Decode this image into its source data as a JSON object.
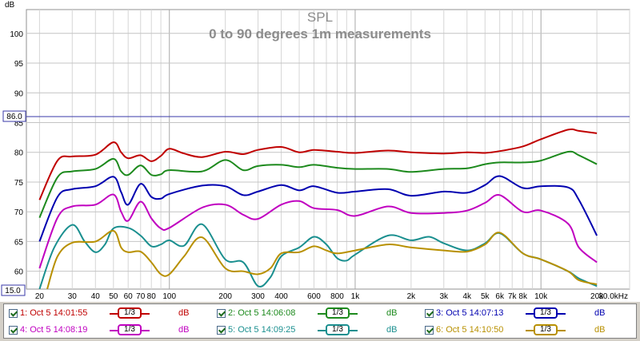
{
  "chart_data": {
    "type": "line",
    "title": "SPL",
    "subtitle": "0 to 90 degrees 1m measurements",
    "ylabel": "dB",
    "xlabel": "",
    "x_scale": "log",
    "xlim": [
      17,
      30000
    ],
    "ylim": [
      57,
      104
    ],
    "y_ticks": [
      "100",
      "95",
      "90",
      "85",
      "80",
      "75",
      "70",
      "65",
      "60"
    ],
    "x_ticks": [
      "20",
      "30",
      "40",
      "50",
      "60",
      "70",
      "80",
      "100",
      "200",
      "300",
      "400",
      "600",
      "800",
      "1k",
      "2k",
      "3k",
      "4k",
      "5k",
      "6k",
      "7k",
      "8k",
      "10k",
      "20k",
      "30.0kHz"
    ],
    "x_tick_values": [
      20,
      30,
      40,
      50,
      60,
      70,
      80,
      100,
      200,
      300,
      400,
      600,
      800,
      1000,
      2000,
      3000,
      4000,
      5000,
      6000,
      7000,
      8000,
      10000,
      20000,
      30000
    ],
    "reference_line_value": "86.0",
    "y_min_marker": "15.0",
    "grid": true,
    "series": [
      {
        "name": "1: Oct 5 14:01:55",
        "color": "#c00000",
        "points": [
          [
            20,
            72
          ],
          [
            25,
            78.6
          ],
          [
            30,
            79.3
          ],
          [
            40,
            79.6
          ],
          [
            50,
            81.7
          ],
          [
            55,
            80
          ],
          [
            60,
            79
          ],
          [
            70,
            79.5
          ],
          [
            80,
            78.5
          ],
          [
            90,
            79.4
          ],
          [
            100,
            80.6
          ],
          [
            120,
            79.8
          ],
          [
            150,
            79.2
          ],
          [
            200,
            80.1
          ],
          [
            250,
            79.7
          ],
          [
            300,
            80.4
          ],
          [
            400,
            80.9
          ],
          [
            500,
            80
          ],
          [
            600,
            80.4
          ],
          [
            800,
            80.1
          ],
          [
            1000,
            79.9
          ],
          [
            1500,
            80.3
          ],
          [
            2000,
            80
          ],
          [
            3000,
            79.8
          ],
          [
            4000,
            80
          ],
          [
            5000,
            79.9
          ],
          [
            6000,
            80.2
          ],
          [
            8000,
            81
          ],
          [
            10000,
            82.2
          ],
          [
            14000,
            83.8
          ],
          [
            16000,
            83.6
          ],
          [
            20000,
            83.2
          ]
        ]
      },
      {
        "name": "2: Oct 5 14:06:08",
        "color": "#1d8a1d",
        "points": [
          [
            20,
            69
          ],
          [
            25,
            75.8
          ],
          [
            30,
            76.8
          ],
          [
            40,
            77.2
          ],
          [
            50,
            78.9
          ],
          [
            55,
            76.8
          ],
          [
            60,
            76.2
          ],
          [
            70,
            77.8
          ],
          [
            80,
            76.2
          ],
          [
            90,
            76.3
          ],
          [
            100,
            77
          ],
          [
            150,
            76.8
          ],
          [
            200,
            78.7
          ],
          [
            250,
            77
          ],
          [
            300,
            77.7
          ],
          [
            400,
            77.9
          ],
          [
            500,
            77.5
          ],
          [
            600,
            77.9
          ],
          [
            800,
            77.4
          ],
          [
            1000,
            77.2
          ],
          [
            1500,
            77.2
          ],
          [
            2000,
            76.7
          ],
          [
            3000,
            77.2
          ],
          [
            4000,
            77.3
          ],
          [
            5000,
            78
          ],
          [
            6000,
            78.3
          ],
          [
            8000,
            78.3
          ],
          [
            10000,
            78.6
          ],
          [
            14000,
            80.1
          ],
          [
            16000,
            79.5
          ],
          [
            20000,
            78
          ]
        ]
      },
      {
        "name": "3: Oct 5 14:07:13",
        "color": "#0000b0",
        "points": [
          [
            20,
            65
          ],
          [
            25,
            72.5
          ],
          [
            30,
            73.8
          ],
          [
            40,
            74.3
          ],
          [
            50,
            75.9
          ],
          [
            55,
            73.3
          ],
          [
            60,
            71.2
          ],
          [
            70,
            74.7
          ],
          [
            80,
            72.5
          ],
          [
            90,
            72.2
          ],
          [
            100,
            73
          ],
          [
            150,
            74.4
          ],
          [
            200,
            74.3
          ],
          [
            250,
            72.8
          ],
          [
            300,
            73.4
          ],
          [
            400,
            74.5
          ],
          [
            500,
            73.6
          ],
          [
            600,
            74.3
          ],
          [
            800,
            73.2
          ],
          [
            1000,
            73.4
          ],
          [
            1500,
            73.8
          ],
          [
            2000,
            72.7
          ],
          [
            3000,
            73.4
          ],
          [
            4000,
            73.2
          ],
          [
            5000,
            74.5
          ],
          [
            6000,
            76
          ],
          [
            8000,
            74
          ],
          [
            10000,
            74.3
          ],
          [
            14000,
            74.1
          ],
          [
            16000,
            72
          ],
          [
            20000,
            66
          ]
        ]
      },
      {
        "name": "4: Oct 5 14:08:19",
        "color": "#c000c0",
        "points": [
          [
            20,
            60.5
          ],
          [
            25,
            69
          ],
          [
            30,
            70.9
          ],
          [
            40,
            71.2
          ],
          [
            50,
            72.9
          ],
          [
            55,
            70
          ],
          [
            60,
            68.5
          ],
          [
            70,
            71.7
          ],
          [
            80,
            68.9
          ],
          [
            90,
            67.2
          ],
          [
            100,
            67.3
          ],
          [
            150,
            70.7
          ],
          [
            200,
            71.2
          ],
          [
            250,
            69.5
          ],
          [
            300,
            68.8
          ],
          [
            400,
            71.2
          ],
          [
            500,
            71.8
          ],
          [
            600,
            70.6
          ],
          [
            800,
            70.3
          ],
          [
            1000,
            69.3
          ],
          [
            1500,
            70.9
          ],
          [
            2000,
            69.8
          ],
          [
            3000,
            69.8
          ],
          [
            4000,
            70.2
          ],
          [
            5000,
            71.5
          ],
          [
            6000,
            72.8
          ],
          [
            8000,
            70
          ],
          [
            10000,
            70.2
          ],
          [
            14000,
            68
          ],
          [
            16000,
            64
          ],
          [
            20000,
            61.5
          ]
        ]
      },
      {
        "name": "5: Oct 5 14:09:25",
        "color": "#1a8f8f",
        "points": [
          [
            20,
            57
          ],
          [
            24,
            64
          ],
          [
            30,
            67.8
          ],
          [
            35,
            65
          ],
          [
            40,
            63.2
          ],
          [
            45,
            64.5
          ],
          [
            50,
            67.2
          ],
          [
            60,
            67.3
          ],
          [
            70,
            66
          ],
          [
            80,
            64.2
          ],
          [
            90,
            64.5
          ],
          [
            100,
            65.2
          ],
          [
            120,
            64.3
          ],
          [
            150,
            67.9
          ],
          [
            200,
            62
          ],
          [
            250,
            61.5
          ],
          [
            300,
            57.5
          ],
          [
            350,
            59
          ],
          [
            400,
            62.5
          ],
          [
            500,
            64
          ],
          [
            600,
            65.8
          ],
          [
            700,
            64.5
          ],
          [
            800,
            62.2
          ],
          [
            900,
            61.8
          ],
          [
            1000,
            62.8
          ],
          [
            1500,
            66
          ],
          [
            2000,
            65.2
          ],
          [
            2500,
            65.8
          ],
          [
            3000,
            64.7
          ],
          [
            4000,
            63.5
          ],
          [
            5000,
            64.7
          ],
          [
            6000,
            66.4
          ],
          [
            8000,
            63
          ],
          [
            10000,
            62
          ],
          [
            14000,
            60
          ],
          [
            16000,
            58.8
          ],
          [
            20000,
            57.5
          ]
        ]
      },
      {
        "name": "6: Oct 5 14:10:50",
        "color": "#b89000",
        "points": [
          [
            22,
            57
          ],
          [
            25,
            62.5
          ],
          [
            30,
            64.8
          ],
          [
            40,
            65
          ],
          [
            50,
            66.8
          ],
          [
            55,
            64
          ],
          [
            60,
            63.2
          ],
          [
            70,
            63.3
          ],
          [
            80,
            61.5
          ],
          [
            90,
            59.5
          ],
          [
            100,
            59.5
          ],
          [
            120,
            62.5
          ],
          [
            150,
            65.7
          ],
          [
            200,
            60.5
          ],
          [
            250,
            60
          ],
          [
            300,
            59.5
          ],
          [
            350,
            60.5
          ],
          [
            400,
            63
          ],
          [
            500,
            63.2
          ],
          [
            600,
            64.2
          ],
          [
            700,
            63.5
          ],
          [
            800,
            63
          ],
          [
            1000,
            63.5
          ],
          [
            1500,
            64.5
          ],
          [
            2000,
            64
          ],
          [
            3000,
            63.5
          ],
          [
            4000,
            63.3
          ],
          [
            5000,
            64.5
          ],
          [
            6000,
            66.5
          ],
          [
            8000,
            63
          ],
          [
            10000,
            62
          ],
          [
            14000,
            60
          ],
          [
            16000,
            58.5
          ],
          [
            20000,
            57.8
          ]
        ]
      }
    ]
  },
  "legend": [
    {
      "label": "1: Oct 5 14:01:55",
      "smoothing": "1/3",
      "unit": "dB",
      "color": "#c00000"
    },
    {
      "label": "2: Oct 5 14:06:08",
      "smoothing": "1/3",
      "unit": "dB",
      "color": "#1d8a1d"
    },
    {
      "label": "3: Oct 5 14:07:13",
      "smoothing": "1/3",
      "unit": "dB",
      "color": "#0000b0"
    },
    {
      "label": "4: Oct 5 14:08:19",
      "smoothing": "1/3",
      "unit": "dB",
      "color": "#c000c0"
    },
    {
      "label": "5: Oct 5 14:09:25",
      "smoothing": "1/3",
      "unit": "dB",
      "color": "#1a8f8f"
    },
    {
      "label": "6: Oct 5 14:10:50",
      "smoothing": "1/3",
      "unit": "dB",
      "color": "#b89000"
    }
  ]
}
